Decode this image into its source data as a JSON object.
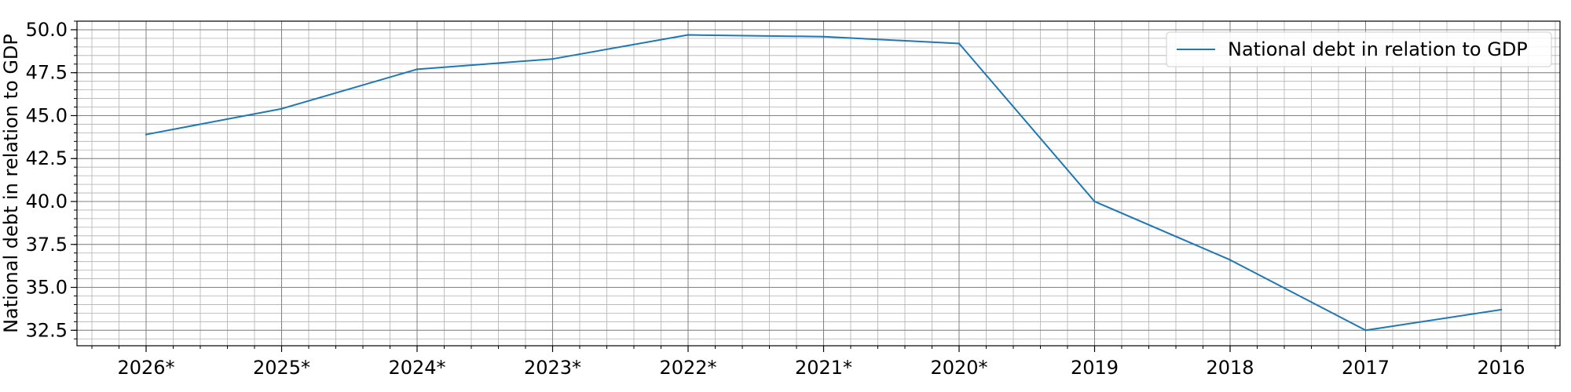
{
  "chart_data": {
    "type": "line",
    "title": "",
    "xlabel": "",
    "ylabel": "National debt in relation to GDP",
    "categories": [
      "2026*",
      "2025*",
      "2024*",
      "2023*",
      "2022*",
      "2021*",
      "2020*",
      "2019",
      "2018",
      "2017",
      "2016"
    ],
    "series": [
      {
        "name": "National debt in relation to GDP",
        "color": "#1f77b4",
        "values": [
          43.9,
          45.4,
          47.7,
          48.3,
          49.7,
          49.6,
          49.2,
          40.0,
          36.6,
          32.5,
          33.7
        ]
      }
    ],
    "ylim": [
      31.6,
      50.5
    ],
    "yticks": [
      32.5,
      35.0,
      37.5,
      40.0,
      42.5,
      45.0,
      47.5,
      50.0
    ],
    "ytick_labels": [
      "32.5",
      "35.0",
      "37.5",
      "40.0",
      "42.5",
      "45.0",
      "47.5",
      "50.0"
    ],
    "grid": "major and minor",
    "legend_position": "top-right"
  }
}
